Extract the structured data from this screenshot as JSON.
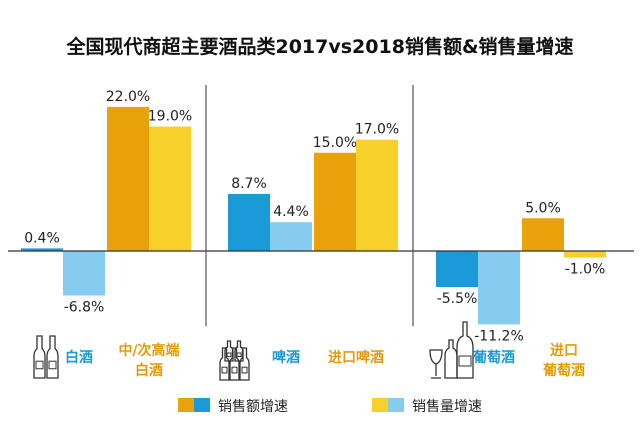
{
  "chart_data": {
    "type": "bar",
    "title": "全国现代商超主要酒品类2017vs2018销售额&销售量增速",
    "categories": [
      {
        "lines": [
          "白酒"
        ],
        "group": "domestic",
        "icon": "baijiu-bottles-icon"
      },
      {
        "lines": [
          "中/次高端",
          "白酒"
        ],
        "group": "imported"
      },
      {
        "lines": [
          "啤酒"
        ],
        "group": "domestic",
        "icon": "beer-bottles-icon"
      },
      {
        "lines": [
          "进口啤酒"
        ],
        "group": "imported"
      },
      {
        "lines": [
          "葡萄酒"
        ],
        "group": "domestic",
        "icon": "wine-bottles-icon"
      },
      {
        "lines": [
          "进口",
          "葡萄酒"
        ],
        "group": "imported"
      }
    ],
    "series": [
      {
        "name": "销售额增速",
        "values": [
          0.4,
          22.0,
          8.7,
          15.0,
          -5.5,
          5.0
        ],
        "labels": [
          "0.4%",
          "22.0%",
          "8.7%",
          "15.0%",
          "-5.5%",
          "5.0%"
        ]
      },
      {
        "name": "销售量增速",
        "values": [
          -6.8,
          19.0,
          4.4,
          17.0,
          -11.2,
          -1.0
        ],
        "labels": [
          "-6.8%",
          "19.0%",
          "4.4%",
          "17.0%",
          "-11.2%",
          "-1.0%"
        ]
      }
    ],
    "ylim": [
      -12,
      25
    ],
    "grid": false,
    "legend_position": "bottom",
    "colors": {
      "domestic_value": "#1a9ad6",
      "domestic_volume": "#85ccf0",
      "imported_value": "#e8a20c",
      "imported_volume": "#f7d02a",
      "domestic_label": "#1a9ad6",
      "imported_label": "#e39b0b",
      "axis": "#333333"
    }
  }
}
